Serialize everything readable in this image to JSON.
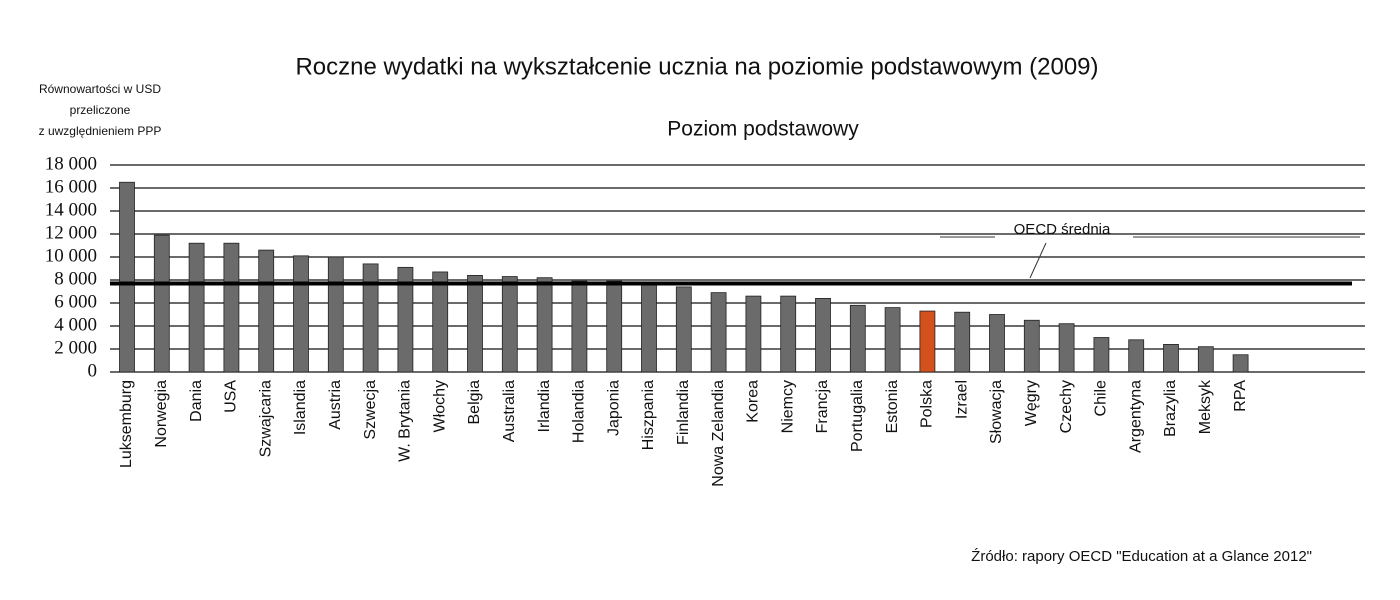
{
  "chart_data": {
    "type": "bar",
    "title": "Roczne wydatki na wykształcenie ucznia na poziomie podstawowym (2009)",
    "subtitle": "Poziom podstawowy",
    "y_label": [
      "Równowartości w USD",
      "przeliczone",
      "z uwzględnieniem PPP"
    ],
    "source": "Źródło: rapory OECD \"Education at a Glance 2012\"",
    "categories": [
      "Luksemburg",
      "Norwegia",
      "Dania",
      "USA",
      "Szwajcaria",
      "Islandia",
      "Austria",
      "Szwecja",
      "W. Brytania",
      "Włochy",
      "Belgia",
      "Australia",
      "Irlandia",
      "Holandia",
      "Japonia",
      "Hiszpania",
      "Finlandia",
      "Nowa Zelandia",
      "Korea",
      "Niemcy",
      "Francja",
      "Portugalia",
      "Estonia",
      "Polska",
      "Izrael",
      "Słowacja",
      "Węgry",
      "Czechy",
      "Chile",
      "Argentyna",
      "Brazylia",
      "Meksyk",
      "RPA"
    ],
    "values": [
      16500,
      11900,
      11200,
      11200,
      10600,
      10100,
      10000,
      9400,
      9100,
      8700,
      8400,
      8300,
      8200,
      7900,
      7900,
      7600,
      7400,
      6900,
      6600,
      6600,
      6400,
      5800,
      5600,
      5300,
      5200,
      5000,
      4500,
      4200,
      3000,
      2800,
      2400,
      2200,
      1500
    ],
    "colors": [
      "#6b6b6b",
      "#6b6b6b",
      "#6b6b6b",
      "#6b6b6b",
      "#6b6b6b",
      "#6b6b6b",
      "#6b6b6b",
      "#6b6b6b",
      "#6b6b6b",
      "#6b6b6b",
      "#6b6b6b",
      "#6b6b6b",
      "#6b6b6b",
      "#6b6b6b",
      "#6b6b6b",
      "#6b6b6b",
      "#6b6b6b",
      "#6b6b6b",
      "#6b6b6b",
      "#6b6b6b",
      "#6b6b6b",
      "#6b6b6b",
      "#6b6b6b",
      "#d4501c",
      "#6b6b6b",
      "#6b6b6b",
      "#6b6b6b",
      "#6b6b6b",
      "#6b6b6b",
      "#6b6b6b",
      "#6b6b6b",
      "#6b6b6b",
      "#6b6b6b"
    ],
    "reference_line": {
      "label": "OECD średnia",
      "value": 7700
    },
    "ylim": [
      0,
      18000
    ],
    "yticks": [
      0,
      {
        "value": 2000,
        "label": "2 000"
      },
      {
        "value": 4000,
        "label": "4 000"
      },
      {
        "value": 6000,
        "label": "6 000"
      },
      {
        "value": 8000,
        "label": "8 000"
      },
      {
        "value": 10000,
        "label": "10 000"
      },
      {
        "value": 12000,
        "label": "12 000"
      },
      {
        "value": 14000,
        "label": "14 000"
      },
      {
        "value": 16000,
        "label": "16 000"
      },
      {
        "value": 18000,
        "label": "18 000"
      }
    ],
    "grid": true
  }
}
